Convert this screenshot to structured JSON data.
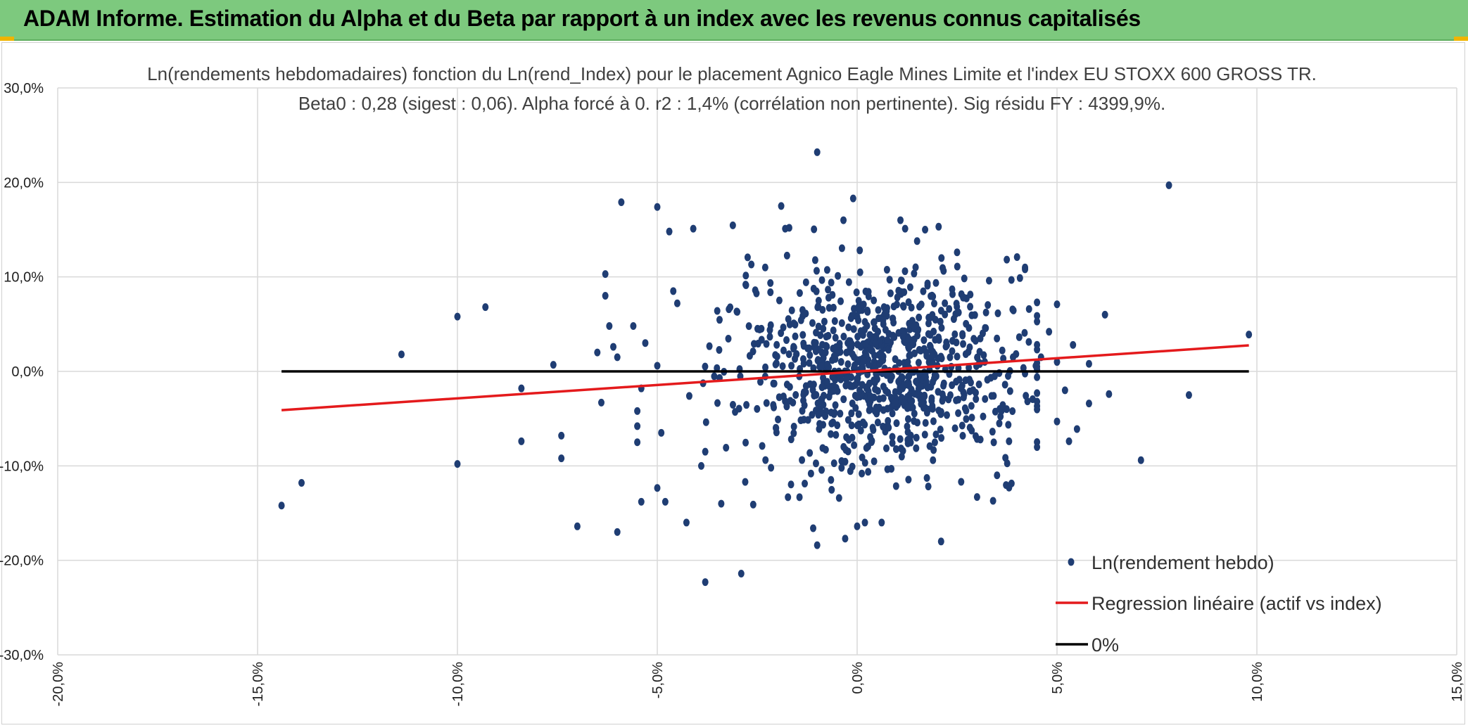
{
  "header": {
    "title": "ADAM Informe. Estimation du Alpha et du Beta par rapport à un index avec les revenus connus capitalisés"
  },
  "colors": {
    "header_bg": "#7dc97e",
    "points": "#1f3d73",
    "regression": "#e41a1c",
    "zero_line": "#000000",
    "grid": "#d9d9d9"
  },
  "chart_data": {
    "type": "scatter",
    "title": "Ln(rendements hebdomadaires) fonction du Ln(rend_Index) pour le placement Agnico Eagle Mines Limite et l'index EU STOXX 600 GROSS TR.",
    "subtitle": "Beta0 : 0,28 (sigest : 0,06). Alpha forcé à 0. r2 : 1,4% (corrélation non pertinente). Sig résidu FY : 4399,9%.",
    "xlabel": "",
    "ylabel": "",
    "xlim": [
      -20,
      15
    ],
    "ylim": [
      -30,
      30
    ],
    "x_ticks": [
      -20,
      -15,
      -10,
      -5,
      0,
      5,
      10,
      15
    ],
    "y_ticks": [
      30,
      20,
      10,
      0,
      -10,
      -20,
      -30
    ],
    "x_tick_labels": [
      "-20,0%",
      "-15,0%",
      "-10,0%",
      "-5,0%",
      "0,0%",
      "5,0%",
      "10,0%",
      "15,0%"
    ],
    "y_tick_labels": [
      "30,0%",
      "20,0%",
      "10,0%",
      "0,0%",
      "-10,0%",
      "-20,0%",
      "-30,0%"
    ],
    "grid": true,
    "legend_position": "bottom-right",
    "series": [
      {
        "name": "Ln(rendement hebdo)",
        "kind": "scatter",
        "color": "#1f3d73",
        "generated_cloud": {
          "count": 900,
          "center": [
            0.6,
            0.3
          ],
          "sx": 1.8,
          "sy": 5.2,
          "x_range": [
            -5,
            4.5
          ],
          "y_range": [
            -16,
            16
          ],
          "seed": 7
        },
        "points": [
          [
            -14.4,
            -14.2
          ],
          [
            -13.9,
            -11.8
          ],
          [
            -11.4,
            1.8
          ],
          [
            -10.0,
            5.8
          ],
          [
            -10.0,
            -9.8
          ],
          [
            -9.3,
            6.8
          ],
          [
            -8.4,
            -1.8
          ],
          [
            -8.4,
            -7.4
          ],
          [
            -7.6,
            0.7
          ],
          [
            -7.4,
            -6.8
          ],
          [
            -7.4,
            -9.2
          ],
          [
            -7.0,
            -16.4
          ],
          [
            -6.4,
            -3.3
          ],
          [
            -6.5,
            2.0
          ],
          [
            -6.3,
            10.3
          ],
          [
            -6.3,
            8.0
          ],
          [
            -6.2,
            4.8
          ],
          [
            -6.1,
            2.6
          ],
          [
            -6.0,
            1.5
          ],
          [
            -6.0,
            -17.0
          ],
          [
            -5.9,
            17.9
          ],
          [
            -5.6,
            4.8
          ],
          [
            -5.5,
            -4.2
          ],
          [
            -5.5,
            -5.8
          ],
          [
            -5.5,
            -7.5
          ],
          [
            -5.4,
            -13.8
          ],
          [
            -5.4,
            -1.8
          ],
          [
            -5.3,
            3.0
          ],
          [
            -5.0,
            17.4
          ],
          [
            -5.0,
            0.6
          ],
          [
            -4.9,
            -6.5
          ],
          [
            -4.8,
            -13.8
          ],
          [
            -4.7,
            14.8
          ],
          [
            -4.6,
            8.5
          ],
          [
            -4.5,
            7.2
          ],
          [
            -4.2,
            -2.6
          ],
          [
            -4.1,
            15.1
          ],
          [
            -3.9,
            -10.0
          ],
          [
            -3.8,
            -8.5
          ],
          [
            -3.8,
            -22.3
          ],
          [
            -2.9,
            -21.4
          ],
          [
            -3.4,
            -14.0
          ],
          [
            -2.6,
            -14.1
          ],
          [
            -2.8,
            -11.7
          ],
          [
            -1.9,
            17.5
          ],
          [
            -1.8,
            15.1
          ],
          [
            -1.7,
            15.2
          ],
          [
            -1.1,
            -16.6
          ],
          [
            -1.0,
            -18.4
          ],
          [
            -1.0,
            23.2
          ],
          [
            -0.3,
            -17.7
          ],
          [
            -0.1,
            18.3
          ],
          [
            0.0,
            -16.4
          ],
          [
            1.2,
            15.1
          ],
          [
            1.7,
            15.0
          ],
          [
            2.1,
            -18.0
          ],
          [
            2.5,
            12.6
          ],
          [
            3.0,
            -13.3
          ],
          [
            3.3,
            9.6
          ],
          [
            3.5,
            -11.0
          ],
          [
            3.8,
            -12.3
          ],
          [
            3.8,
            -7.4
          ],
          [
            4.0,
            12.1
          ],
          [
            4.2,
            10.8
          ],
          [
            4.2,
            11.0
          ],
          [
            4.3,
            6.6
          ],
          [
            4.5,
            -3.2
          ],
          [
            4.8,
            4.2
          ],
          [
            5.0,
            7.1
          ],
          [
            5.0,
            -5.3
          ],
          [
            5.0,
            1.0
          ],
          [
            5.2,
            -2.0
          ],
          [
            5.3,
            -7.4
          ],
          [
            5.4,
            2.8
          ],
          [
            5.5,
            -6.1
          ],
          [
            5.8,
            -3.4
          ],
          [
            5.8,
            0.8
          ],
          [
            6.2,
            6.0
          ],
          [
            6.3,
            -2.4
          ],
          [
            7.1,
            -9.4
          ],
          [
            7.8,
            19.7
          ],
          [
            8.3,
            -2.5
          ],
          [
            9.8,
            3.9
          ],
          [
            4.6,
            1.5
          ],
          [
            3.9,
            1.5
          ],
          [
            3.2,
            4.6
          ],
          [
            2.7,
            -3.9
          ],
          [
            -3.5,
            6.4
          ],
          [
            -3.0,
            6.3
          ],
          [
            -2.3,
            11.0
          ]
        ]
      },
      {
        "name": "Regression linéaire (actif vs index)",
        "kind": "line",
        "color": "#e41a1c",
        "points": [
          [
            -14.4,
            -4.1
          ],
          [
            9.8,
            2.75
          ]
        ]
      },
      {
        "name": "0%",
        "kind": "line",
        "color": "#000000",
        "points": [
          [
            -14.4,
            0
          ],
          [
            9.8,
            0
          ]
        ]
      }
    ]
  }
}
